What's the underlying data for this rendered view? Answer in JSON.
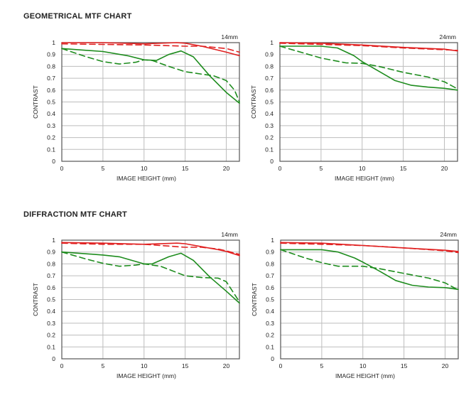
{
  "sections": [
    {
      "title": "GEOMETRICAL MTF CHART"
    },
    {
      "title": "DIFFRACTION MTF CHART"
    }
  ],
  "colors": {
    "red": "#e02020",
    "green": "#1e8c1e",
    "grid": "#bdbdbd",
    "frame": "#555555"
  },
  "chart_data": [
    {
      "type": "line",
      "section": 0,
      "title": "14mm",
      "xlabel": "IMAGE HEIGHT (mm)",
      "ylabel": "CONTRAST",
      "xlim": [
        0,
        21.6
      ],
      "ylim": [
        0,
        1
      ],
      "xticks": [
        0,
        5,
        10,
        15,
        20
      ],
      "yticks": [
        0,
        0.1,
        0.2,
        0.3,
        0.4,
        0.5,
        0.6,
        0.7,
        0.8,
        0.9,
        1
      ],
      "ytick_labels": [
        "0",
        "0.1",
        "0.2",
        "0.3",
        "0.4",
        "0.5",
        "0.6",
        "0.7",
        "0.8",
        "0.9",
        "1"
      ],
      "grid": true,
      "series": [
        {
          "color": "red",
          "dash": false,
          "x": [
            0,
            5,
            10,
            14,
            15,
            17,
            20,
            21.6
          ],
          "y": [
            1.0,
            1.0,
            0.99,
            1.0,
            0.995,
            0.97,
            0.92,
            0.89
          ]
        },
        {
          "color": "red",
          "dash": true,
          "x": [
            0,
            5,
            10,
            15,
            17,
            20,
            21.6
          ],
          "y": [
            0.99,
            0.985,
            0.98,
            0.97,
            0.97,
            0.95,
            0.92
          ]
        },
        {
          "color": "green",
          "dash": false,
          "x": [
            0,
            5,
            8,
            10,
            11.5,
            13,
            14.5,
            16,
            18,
            20,
            21.6
          ],
          "y": [
            0.95,
            0.925,
            0.89,
            0.855,
            0.85,
            0.9,
            0.93,
            0.88,
            0.72,
            0.58,
            0.49
          ]
        },
        {
          "color": "green",
          "dash": true,
          "x": [
            0,
            3,
            5,
            7,
            9,
            10,
            11,
            13,
            15,
            17,
            18.5,
            20,
            21,
            21.6
          ],
          "y": [
            0.95,
            0.88,
            0.84,
            0.82,
            0.835,
            0.855,
            0.85,
            0.8,
            0.755,
            0.735,
            0.72,
            0.68,
            0.6,
            0.5
          ]
        }
      ]
    },
    {
      "type": "line",
      "section": 0,
      "title": "24mm",
      "xlabel": "IMAGE HEIGHT (mm)",
      "ylabel": "CONTRAST",
      "xlim": [
        0,
        21.6
      ],
      "ylim": [
        0,
        1
      ],
      "xticks": [
        0,
        5,
        10,
        15,
        20
      ],
      "yticks": [
        0,
        0.1,
        0.2,
        0.3,
        0.4,
        0.5,
        0.6,
        0.7,
        0.8,
        0.9,
        1
      ],
      "ytick_labels": [
        "0",
        "0.1",
        "0.2",
        "0.3",
        "0.4",
        "0.5",
        "0.6",
        "0.7",
        "0.8",
        "0.9",
        "1"
      ],
      "grid": true,
      "series": [
        {
          "color": "red",
          "dash": false,
          "x": [
            0,
            5,
            10,
            15,
            20,
            21.6
          ],
          "y": [
            1.0,
            0.995,
            0.98,
            0.96,
            0.945,
            0.93
          ]
        },
        {
          "color": "red",
          "dash": true,
          "x": [
            0,
            5,
            10,
            15,
            20,
            21.6
          ],
          "y": [
            0.995,
            0.985,
            0.975,
            0.955,
            0.94,
            0.935
          ]
        },
        {
          "color": "green",
          "dash": false,
          "x": [
            0,
            5,
            7,
            9,
            10,
            12,
            14,
            16,
            18,
            20,
            21.6
          ],
          "y": [
            0.97,
            0.97,
            0.955,
            0.89,
            0.84,
            0.76,
            0.68,
            0.64,
            0.625,
            0.615,
            0.6
          ]
        },
        {
          "color": "green",
          "dash": true,
          "x": [
            0,
            3,
            5,
            8,
            10,
            12,
            15,
            18,
            20,
            21.6
          ],
          "y": [
            0.97,
            0.91,
            0.87,
            0.83,
            0.825,
            0.8,
            0.75,
            0.71,
            0.67,
            0.61
          ]
        }
      ]
    },
    {
      "type": "line",
      "section": 1,
      "title": "14mm",
      "xlabel": "IMAGE HEIGHT (mm)",
      "ylabel": "CONTRAST",
      "xlim": [
        0,
        21.6
      ],
      "ylim": [
        0,
        1
      ],
      "xticks": [
        0,
        5,
        10,
        15,
        20
      ],
      "yticks": [
        0,
        0.1,
        0.2,
        0.3,
        0.4,
        0.5,
        0.6,
        0.7,
        0.8,
        0.9,
        1
      ],
      "ytick_labels": [
        "0",
        "0.1",
        "0.2",
        "0.3",
        "0.4",
        "0.5",
        "0.6",
        "0.7",
        "0.8",
        "0.9",
        "1"
      ],
      "grid": true,
      "series": [
        {
          "color": "red",
          "dash": false,
          "x": [
            0,
            5,
            10,
            14,
            15,
            17,
            19,
            20,
            21.6
          ],
          "y": [
            0.98,
            0.975,
            0.965,
            0.975,
            0.97,
            0.945,
            0.92,
            0.905,
            0.87
          ]
        },
        {
          "color": "red",
          "dash": true,
          "x": [
            0,
            5,
            10,
            15,
            17,
            19,
            20,
            21.6
          ],
          "y": [
            0.975,
            0.965,
            0.965,
            0.94,
            0.94,
            0.925,
            0.91,
            0.88
          ]
        },
        {
          "color": "green",
          "dash": false,
          "x": [
            0,
            5,
            7,
            10,
            11,
            13,
            14.5,
            16,
            18,
            20,
            21.6
          ],
          "y": [
            0.9,
            0.875,
            0.86,
            0.8,
            0.8,
            0.86,
            0.89,
            0.83,
            0.69,
            0.57,
            0.47
          ]
        },
        {
          "color": "green",
          "dash": true,
          "x": [
            0,
            3,
            5,
            7,
            9,
            10,
            12,
            15,
            17,
            19,
            20,
            21.6
          ],
          "y": [
            0.9,
            0.84,
            0.805,
            0.78,
            0.79,
            0.8,
            0.78,
            0.7,
            0.685,
            0.68,
            0.65,
            0.48
          ]
        }
      ]
    },
    {
      "type": "line",
      "section": 1,
      "title": "24mm",
      "xlabel": "IMAGE HEIGHT (mm)",
      "ylabel": "CONTRAST",
      "xlim": [
        0,
        21.6
      ],
      "ylim": [
        0,
        1
      ],
      "xticks": [
        0,
        5,
        10,
        15,
        20
      ],
      "yticks": [
        0,
        0.1,
        0.2,
        0.3,
        0.4,
        0.5,
        0.6,
        0.7,
        0.8,
        0.9,
        1
      ],
      "ytick_labels": [
        "0",
        "0.1",
        "0.2",
        "0.3",
        "0.4",
        "0.5",
        "0.6",
        "0.7",
        "0.8",
        "0.9",
        "1"
      ],
      "grid": true,
      "series": [
        {
          "color": "red",
          "dash": false,
          "x": [
            0,
            5,
            10,
            15,
            20,
            21.6
          ],
          "y": [
            0.98,
            0.975,
            0.955,
            0.935,
            0.915,
            0.905
          ]
        },
        {
          "color": "red",
          "dash": true,
          "x": [
            0,
            5,
            10,
            15,
            20,
            21.6
          ],
          "y": [
            0.975,
            0.965,
            0.955,
            0.935,
            0.91,
            0.895
          ]
        },
        {
          "color": "green",
          "dash": false,
          "x": [
            0,
            5,
            7,
            9,
            10,
            12,
            14,
            16,
            18,
            20,
            21.6
          ],
          "y": [
            0.92,
            0.92,
            0.9,
            0.85,
            0.815,
            0.74,
            0.66,
            0.62,
            0.605,
            0.6,
            0.585
          ]
        },
        {
          "color": "green",
          "dash": true,
          "x": [
            0,
            3,
            5,
            7,
            10,
            12,
            15,
            18,
            20,
            21.6
          ],
          "y": [
            0.92,
            0.85,
            0.81,
            0.78,
            0.78,
            0.76,
            0.72,
            0.68,
            0.64,
            0.58
          ]
        }
      ]
    }
  ]
}
